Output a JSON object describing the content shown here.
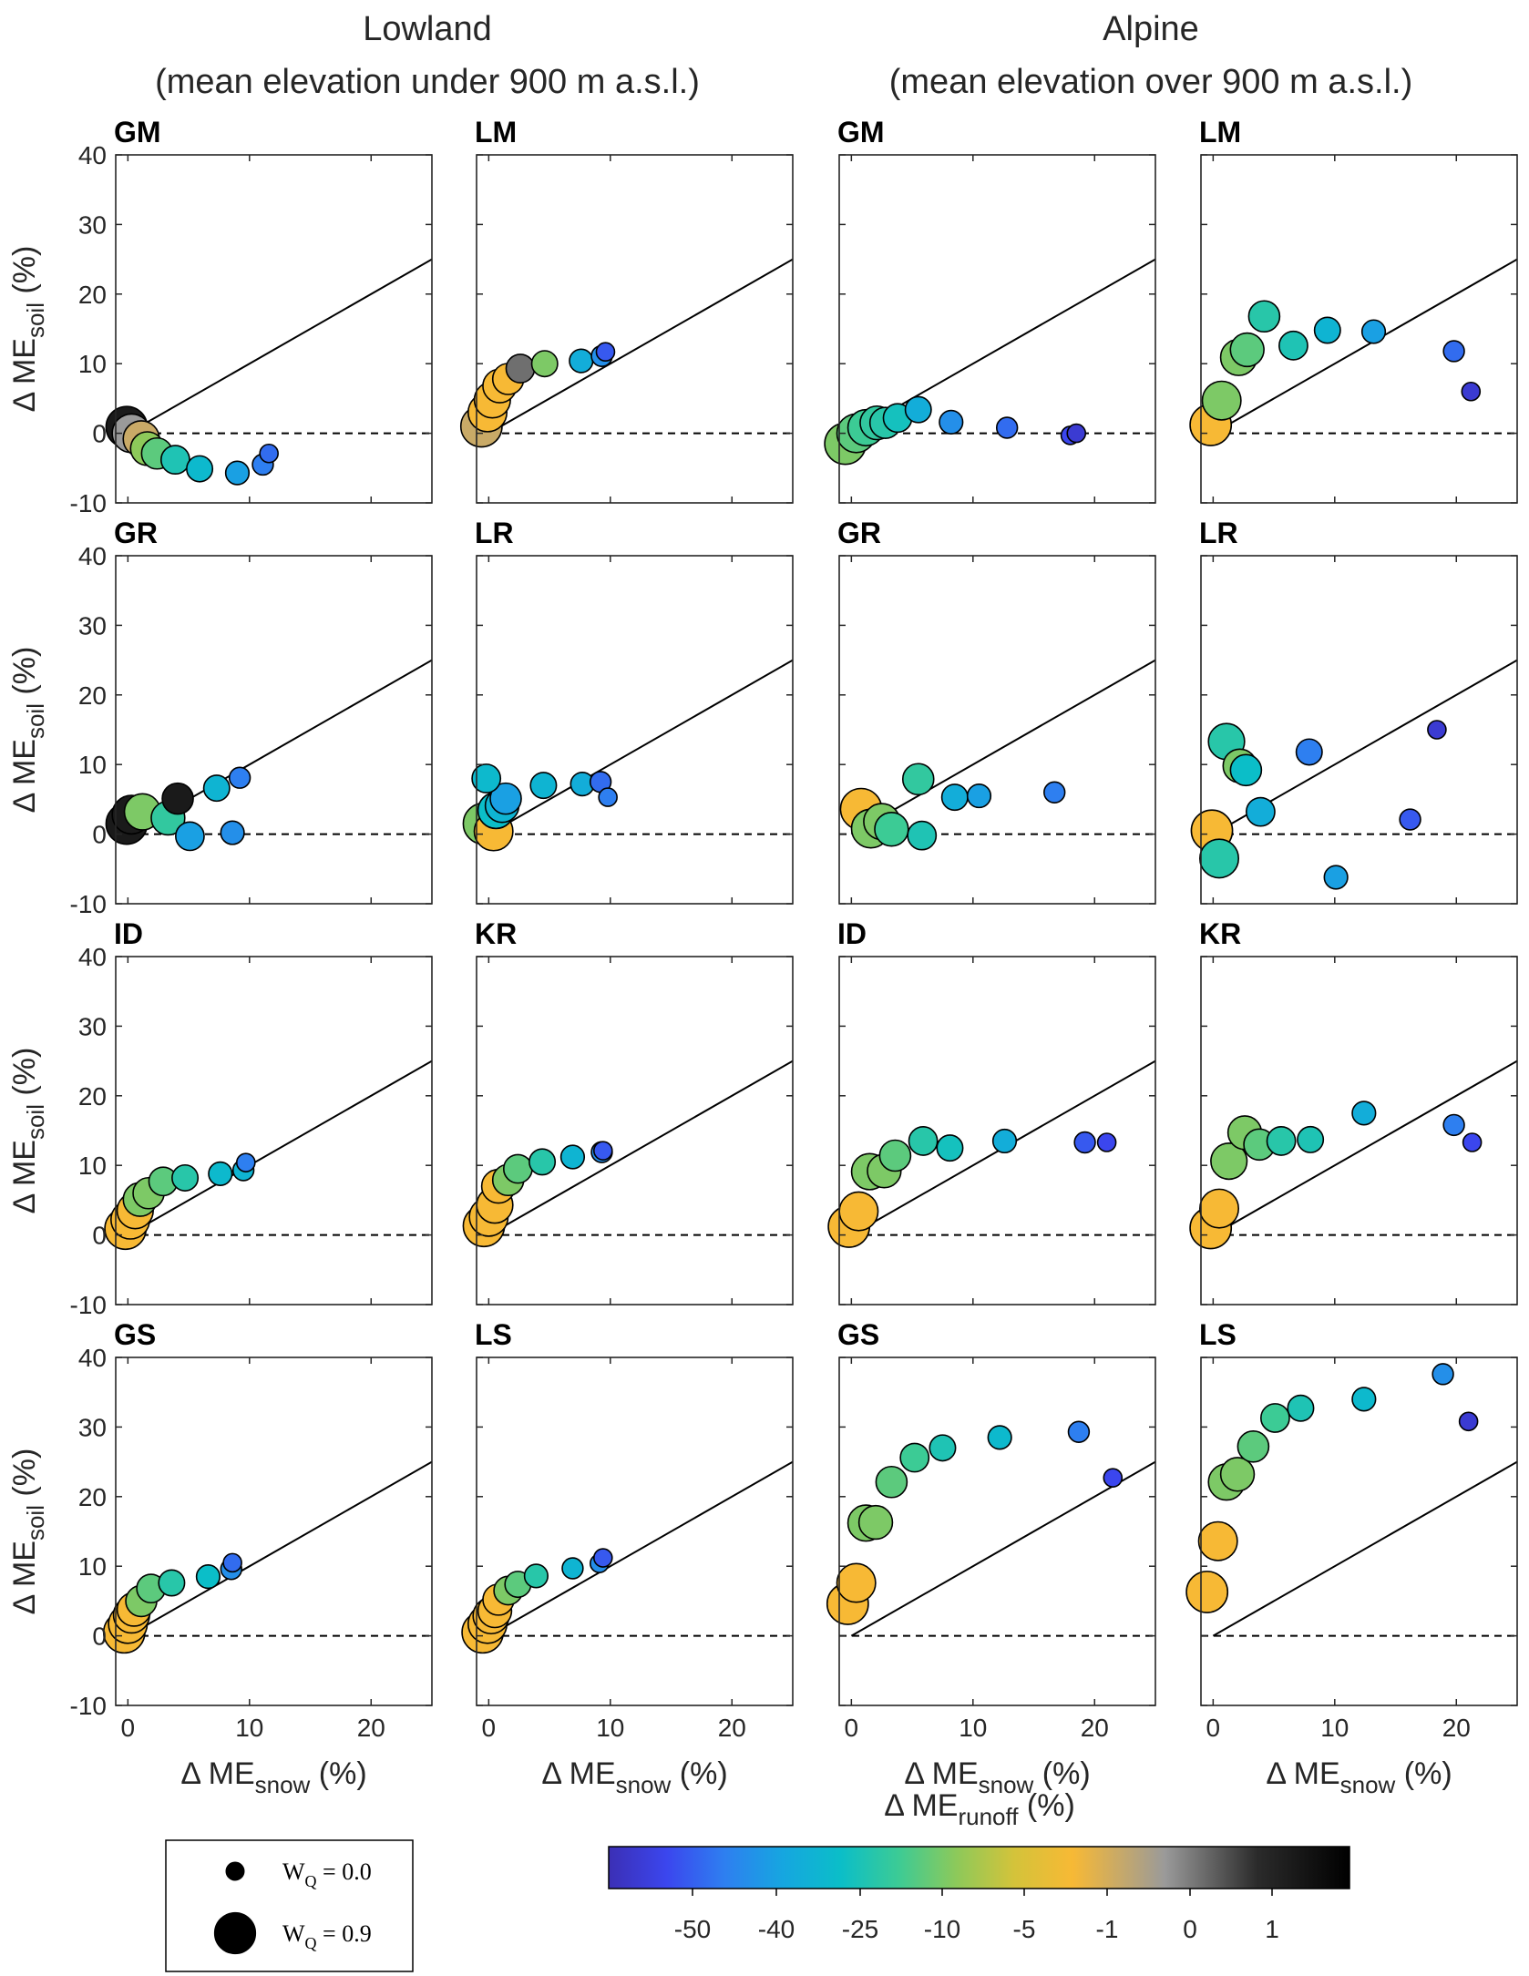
{
  "figure": {
    "column_groups": [
      {
        "title": "Lowland",
        "subtitle": "(mean elevation under 900 m a.s.l.)"
      },
      {
        "title": "Alpine",
        "subtitle": "(mean elevation over 900 m a.s.l.)"
      }
    ],
    "y_label": {
      "main": "Δ ME",
      "sub": "soil",
      "unit": "(%)"
    },
    "x_label": {
      "main": "Δ ME",
      "sub": "snow",
      "unit": "(%)"
    },
    "x_ticks": [
      "0",
      "10",
      "20"
    ],
    "y_ticks": [
      "-10",
      "0",
      "10",
      "20",
      "30",
      "40"
    ]
  },
  "size_legend": {
    "items": [
      {
        "label": "W",
        "sub": "Q",
        "rest": " = 0.0",
        "weight": 0.0
      },
      {
        "label": "W",
        "sub": "Q",
        "rest": " = 0.9",
        "weight": 0.9
      }
    ]
  },
  "colorbar": {
    "label": {
      "main": "Δ ME",
      "sub": "runoff",
      "unit": "(%)"
    },
    "tick_labels": [
      "-50",
      "-40",
      "-25",
      "-10",
      "-5",
      "-1",
      "0",
      "1"
    ],
    "stops": [
      "#3b2fb5",
      "#3b46ee",
      "#2e7ff0",
      "#16a6e0",
      "#0bbec8",
      "#3ccb95",
      "#8dc95a",
      "#d4c33a",
      "#f7b935",
      "#9a9a9a",
      "#2b2b2b",
      "#000000"
    ]
  },
  "chart_data": {
    "type": "scatter",
    "xlim": [
      -1,
      25
    ],
    "ylim": [
      -10,
      40
    ],
    "reference_lines": {
      "solid": "y = x",
      "dashed": "y = 0"
    },
    "color_scale": {
      "values": [
        -55,
        -45,
        -30,
        -18,
        -8,
        -3,
        -0.5,
        0.01,
        1,
        2.5
      ],
      "colors": [
        "#3b2fb5",
        "#3b46ee",
        "#2e7ff0",
        "#16a6e0",
        "#0bbec8",
        "#3ccb95",
        "#8dc95a",
        "#f7b935",
        "#9a9a9a",
        "#1a1a1a"
      ]
    },
    "panels": [
      {
        "title": "GM",
        "points": [
          [
            -0.1,
            0.9,
            0.9,
            2.5
          ],
          [
            0.3,
            0,
            0.8,
            1
          ],
          [
            1.1,
            -0.8,
            0.7,
            0.5
          ],
          [
            1.6,
            -2.2,
            0.6,
            -0.5
          ],
          [
            2.4,
            -2.9,
            0.5,
            -2
          ],
          [
            3.9,
            -3.8,
            0.4,
            -6
          ],
          [
            5.9,
            -5.1,
            0.3,
            -10
          ],
          [
            9,
            -5.7,
            0.2,
            -20
          ],
          [
            11.1,
            -4.5,
            0.1,
            -30
          ],
          [
            11.6,
            -2.9,
            0,
            -35
          ]
        ]
      },
      {
        "title": "LM",
        "points": [
          [
            -0.6,
            1,
            0.9,
            0.5
          ],
          [
            -0.1,
            3,
            0.8,
            0.01
          ],
          [
            0.3,
            4.8,
            0.7,
            0.01
          ],
          [
            0.9,
            6.8,
            0.6,
            0.01
          ],
          [
            1.6,
            7.8,
            0.5,
            0.01
          ],
          [
            2.6,
            9.3,
            0.4,
            1.5
          ],
          [
            4.6,
            10,
            0.3,
            -1
          ],
          [
            7.6,
            10.4,
            0.2,
            -15
          ],
          [
            9.3,
            11.1,
            0.1,
            -25
          ],
          [
            9.6,
            11.7,
            0,
            -40
          ]
        ]
      },
      {
        "title": "GM",
        "points": [
          [
            -0.5,
            -1.5,
            0.9,
            -1
          ],
          [
            0.4,
            0,
            0.8,
            -2
          ],
          [
            1.2,
            0.8,
            0.7,
            -3
          ],
          [
            2.1,
            1.5,
            0.6,
            -4
          ],
          [
            2.8,
            1.5,
            0.5,
            -5
          ],
          [
            3.8,
            2.2,
            0.4,
            -7
          ],
          [
            5.5,
            3.4,
            0.3,
            -15
          ],
          [
            8.2,
            1.6,
            0.2,
            -25
          ],
          [
            12.8,
            0.8,
            0.1,
            -35
          ],
          [
            18,
            -0.3,
            0,
            -45
          ],
          [
            18.5,
            0,
            0,
            -50
          ]
        ]
      },
      {
        "title": "LM",
        "points": [
          [
            -0.2,
            1.2,
            0.9,
            0.01
          ],
          [
            0.7,
            4.7,
            0.8,
            -1
          ],
          [
            2.1,
            10.9,
            0.7,
            -1
          ],
          [
            2.8,
            12,
            0.6,
            -2
          ],
          [
            4.2,
            16.8,
            0.5,
            -5
          ],
          [
            6.6,
            12.6,
            0.4,
            -6
          ],
          [
            9.4,
            14.8,
            0.3,
            -12
          ],
          [
            13.2,
            14.6,
            0.2,
            -20
          ],
          [
            19.8,
            11.8,
            0.1,
            -35
          ],
          [
            21.2,
            6,
            0,
            -50
          ]
        ]
      },
      {
        "title": "GR",
        "points": [
          [
            -0.1,
            1.5,
            0.9,
            2.5
          ],
          [
            0.3,
            2.8,
            0.8,
            2.5
          ],
          [
            1.2,
            3.2,
            0.7,
            -1
          ],
          [
            3.3,
            2.3,
            0.6,
            -4
          ],
          [
            4.1,
            5.1,
            0.5,
            2.5
          ],
          [
            5.1,
            -0.3,
            0.4,
            -20
          ],
          [
            7.3,
            6.6,
            0.3,
            -12
          ],
          [
            8.6,
            0.2,
            0.2,
            -25
          ],
          [
            9.2,
            8.1,
            0.1,
            -30
          ]
        ]
      },
      {
        "title": "LR",
        "points": [
          [
            -0.4,
            1.5,
            0.9,
            -1
          ],
          [
            0.4,
            0.4,
            0.8,
            0.01
          ],
          [
            0.6,
            3.4,
            0.7,
            -8
          ],
          [
            1.1,
            4.1,
            0.6,
            -12
          ],
          [
            1.4,
            5.1,
            0.5,
            -20
          ],
          [
            -0.2,
            8,
            0.4,
            -10
          ],
          [
            4.5,
            7,
            0.3,
            -12
          ],
          [
            7.7,
            7.2,
            0.2,
            -15
          ],
          [
            9.2,
            7.5,
            0.1,
            -35
          ],
          [
            9.8,
            5.3,
            0,
            -30
          ]
        ]
      },
      {
        "title": "GR",
        "points": [
          [
            0.8,
            3.6,
            0.9,
            0.01
          ],
          [
            1.6,
            0.8,
            0.8,
            -1
          ],
          [
            2.5,
            1.8,
            0.7,
            -1
          ],
          [
            3.3,
            0.7,
            0.6,
            -3
          ],
          [
            5.5,
            7.9,
            0.5,
            -4
          ],
          [
            5.8,
            -0.2,
            0.4,
            -6
          ],
          [
            8.5,
            5.3,
            0.3,
            -15
          ],
          [
            10.5,
            5.5,
            0.2,
            -20
          ],
          [
            16.7,
            6,
            0.1,
            -30
          ]
        ]
      },
      {
        "title": "LR",
        "points": [
          [
            -0.1,
            0.5,
            0.9,
            0.01
          ],
          [
            0.5,
            -3.5,
            0.8,
            -5
          ],
          [
            1.1,
            13.3,
            0.7,
            -5
          ],
          [
            2.2,
            9.8,
            0.6,
            -1
          ],
          [
            2.7,
            9.2,
            0.5,
            -8
          ],
          [
            3.9,
            3.2,
            0.4,
            -15
          ],
          [
            7.9,
            11.8,
            0.3,
            -30
          ],
          [
            10.1,
            -6.2,
            0.2,
            -20
          ],
          [
            16.2,
            2.1,
            0.1,
            -40
          ],
          [
            18.4,
            15,
            0,
            -50
          ]
        ]
      },
      {
        "title": "ID",
        "points": [
          [
            -0.2,
            0.9,
            0.9,
            0.01
          ],
          [
            0.2,
            2.2,
            0.8,
            0.01
          ],
          [
            0.6,
            3.5,
            0.7,
            0.01
          ],
          [
            1,
            5.1,
            0.6,
            -1
          ],
          [
            1.7,
            6,
            0.5,
            -1
          ],
          [
            2.9,
            7.7,
            0.4,
            -2
          ],
          [
            4.7,
            8.2,
            0.3,
            -5
          ],
          [
            7.6,
            8.8,
            0.2,
            -10
          ],
          [
            9.5,
            9.3,
            0.1,
            -12
          ],
          [
            9.7,
            10.4,
            0,
            -30
          ]
        ]
      },
      {
        "title": "KR",
        "points": [
          [
            -0.4,
            1.3,
            0.9,
            0.01
          ],
          [
            0,
            2.6,
            0.8,
            0.01
          ],
          [
            0.5,
            4.3,
            0.7,
            0.01
          ],
          [
            0.8,
            7,
            0.6,
            0.01
          ],
          [
            1.6,
            7.9,
            0.5,
            -1
          ],
          [
            2.4,
            9.5,
            0.4,
            -2
          ],
          [
            4.4,
            10.5,
            0.3,
            -5
          ],
          [
            6.9,
            11.2,
            0.2,
            -12
          ],
          [
            9.3,
            11.9,
            0.1,
            -25
          ],
          [
            9.4,
            12.1,
            0,
            -40
          ]
        ]
      },
      {
        "title": "ID",
        "points": [
          [
            -0.2,
            1.2,
            0.9,
            0.01
          ],
          [
            0.6,
            3.4,
            0.8,
            0.01
          ],
          [
            1.5,
            9.1,
            0.7,
            -1
          ],
          [
            2.7,
            9.2,
            0.6,
            -1
          ],
          [
            3.6,
            11.4,
            0.5,
            -2
          ],
          [
            5.9,
            13.5,
            0.4,
            -5
          ],
          [
            8.1,
            12.5,
            0.3,
            -7
          ],
          [
            12.6,
            13.5,
            0.2,
            -15
          ],
          [
            19.2,
            13.3,
            0.1,
            -40
          ],
          [
            21,
            13.3,
            0,
            -45
          ]
        ]
      },
      {
        "title": "KR",
        "points": [
          [
            -0.2,
            1,
            0.9,
            0.01
          ],
          [
            0.5,
            3.8,
            0.8,
            0.01
          ],
          [
            1.3,
            10.6,
            0.7,
            -1
          ],
          [
            2.6,
            14.7,
            0.6,
            -1
          ],
          [
            3.8,
            13,
            0.5,
            -2
          ],
          [
            5.6,
            13.5,
            0.4,
            -5
          ],
          [
            8,
            13.7,
            0.3,
            -6
          ],
          [
            12.4,
            17.5,
            0.2,
            -15
          ],
          [
            19.8,
            15.8,
            0.1,
            -30
          ],
          [
            21.3,
            13.3,
            0,
            -45
          ]
        ]
      },
      {
        "title": "GS",
        "points": [
          [
            -0.3,
            0.5,
            0.9,
            0.01
          ],
          [
            0,
            1.7,
            0.8,
            0.01
          ],
          [
            0.3,
            3,
            0.7,
            0.01
          ],
          [
            0.5,
            3.8,
            0.6,
            0.01
          ],
          [
            1.1,
            5,
            0.5,
            -1
          ],
          [
            1.9,
            6.8,
            0.4,
            -2
          ],
          [
            3.6,
            7.6,
            0.3,
            -5
          ],
          [
            6.6,
            8.5,
            0.2,
            -8
          ],
          [
            8.5,
            9.6,
            0.1,
            -25
          ],
          [
            8.6,
            10.5,
            0,
            -35
          ]
        ]
      },
      {
        "title": "LS",
        "points": [
          [
            -0.5,
            0.5,
            0.9,
            0.01
          ],
          [
            -0.1,
            1.7,
            0.8,
            0.01
          ],
          [
            0.2,
            2.9,
            0.7,
            0.01
          ],
          [
            0.5,
            3.6,
            0.6,
            0.01
          ],
          [
            0.8,
            5.2,
            0.5,
            0.01
          ],
          [
            1.6,
            6.5,
            0.4,
            -1
          ],
          [
            2.4,
            7.4,
            0.3,
            -2
          ],
          [
            3.9,
            8.6,
            0.2,
            -5
          ],
          [
            6.9,
            9.7,
            0.1,
            -12
          ],
          [
            9.1,
            10.4,
            0,
            -25
          ],
          [
            9.4,
            11.2,
            0,
            -40
          ]
        ]
      },
      {
        "title": "GS",
        "points": [
          [
            -0.3,
            4.6,
            0.9,
            0.01
          ],
          [
            0.4,
            7.6,
            0.8,
            0.01
          ],
          [
            1.2,
            16.2,
            0.7,
            -1
          ],
          [
            2,
            16.3,
            0.6,
            -1
          ],
          [
            3.3,
            22.1,
            0.5,
            -2
          ],
          [
            5.2,
            25.6,
            0.4,
            -3
          ],
          [
            7.5,
            27,
            0.3,
            -6
          ],
          [
            12.2,
            28.5,
            0.2,
            -10
          ],
          [
            18.7,
            29.3,
            0.1,
            -30
          ],
          [
            21.5,
            22.7,
            0,
            -45
          ]
        ]
      },
      {
        "title": "LS",
        "points": [
          [
            -0.5,
            6.3,
            0.9,
            0.01
          ],
          [
            0.4,
            13.6,
            0.8,
            0.01
          ],
          [
            1.1,
            22.1,
            0.7,
            -1
          ],
          [
            2,
            23.2,
            0.6,
            -1
          ],
          [
            3.3,
            27.2,
            0.5,
            -2
          ],
          [
            5.1,
            31.3,
            0.4,
            -3
          ],
          [
            7.2,
            32.7,
            0.3,
            -6
          ],
          [
            12.4,
            34,
            0.2,
            -10
          ],
          [
            18.9,
            37.6,
            0.1,
            -25
          ],
          [
            21,
            30.8,
            0,
            -50
          ]
        ]
      }
    ]
  }
}
